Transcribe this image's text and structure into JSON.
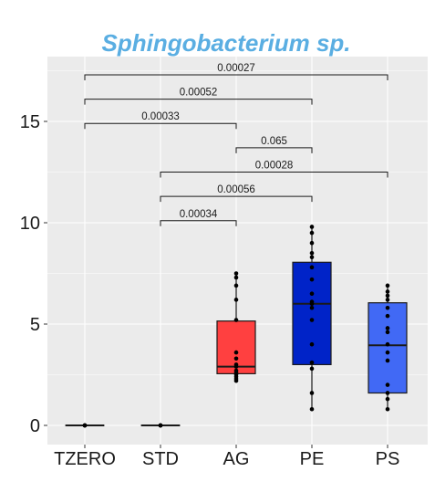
{
  "chart_data": {
    "type": "box",
    "title": "Sphingobacterium sp.",
    "xlabel": "",
    "ylabel": "",
    "ylim": [
      -0.9,
      18.2
    ],
    "yticks": [
      0,
      5,
      10,
      15
    ],
    "grid": true,
    "legend": "none",
    "categories": [
      "TZERO",
      "STD",
      "AG",
      "PE",
      "PS"
    ],
    "boxes": [
      {
        "category": "TZERO",
        "min": 0,
        "q1": 0,
        "median": 0,
        "q3": 0,
        "max": 0,
        "color": "#ffffff"
      },
      {
        "category": "STD",
        "min": 0,
        "q1": 0,
        "median": 0,
        "q3": 0,
        "max": 0,
        "color": "#ffffff"
      },
      {
        "category": "AG",
        "min": 2.2,
        "q1": 2.55,
        "median": 2.9,
        "q3": 5.15,
        "max": 7.5,
        "color": "#ff4040"
      },
      {
        "category": "PE",
        "min": 0.8,
        "q1": 3.0,
        "median": 6.0,
        "q3": 8.05,
        "max": 9.8,
        "color": "#0023c8"
      },
      {
        "category": "PS",
        "min": 0.8,
        "q1": 1.6,
        "median": 3.95,
        "q3": 6.05,
        "max": 6.9,
        "color": "#4169f5"
      }
    ],
    "points": {
      "TZERO": [
        0,
        0,
        0,
        0,
        0
      ],
      "STD": [
        0,
        0,
        0,
        0,
        0
      ],
      "AG": [
        2.2,
        2.3,
        2.4,
        2.5,
        2.6,
        2.7,
        2.9,
        3.0,
        3.3,
        3.6,
        5.2,
        6.2,
        6.9,
        7.3,
        7.5
      ],
      "PE": [
        0.8,
        1.6,
        2.8,
        3.1,
        4.0,
        5.2,
        5.8,
        6.0,
        6.1,
        6.5,
        7.2,
        7.8,
        8.3,
        8.5,
        9.0,
        9.5,
        9.8
      ],
      "PS": [
        0.8,
        1.3,
        1.6,
        2.0,
        3.2,
        3.6,
        4.0,
        4.6,
        4.8,
        5.4,
        5.8,
        6.2,
        6.4,
        6.6,
        6.9
      ]
    },
    "comparisons": [
      {
        "from": "TZERO",
        "to": "PS",
        "label": "0.00027",
        "y": 17.3
      },
      {
        "from": "TZERO",
        "to": "PE",
        "label": "0.00052",
        "y": 16.1
      },
      {
        "from": "TZERO",
        "to": "AG",
        "label": "0.00033",
        "y": 14.9
      },
      {
        "from": "AG",
        "to": "PE",
        "label": "0.065",
        "y": 13.7
      },
      {
        "from": "STD",
        "to": "PS",
        "label": "0.00028",
        "y": 12.5
      },
      {
        "from": "STD",
        "to": "PE",
        "label": "0.00056",
        "y": 11.3
      },
      {
        "from": "STD",
        "to": "AG",
        "label": "0.00034",
        "y": 10.1
      }
    ],
    "colors": {
      "title": "#5aaee2",
      "panel": "#ebebeb",
      "grid": "#ffffff"
    }
  }
}
